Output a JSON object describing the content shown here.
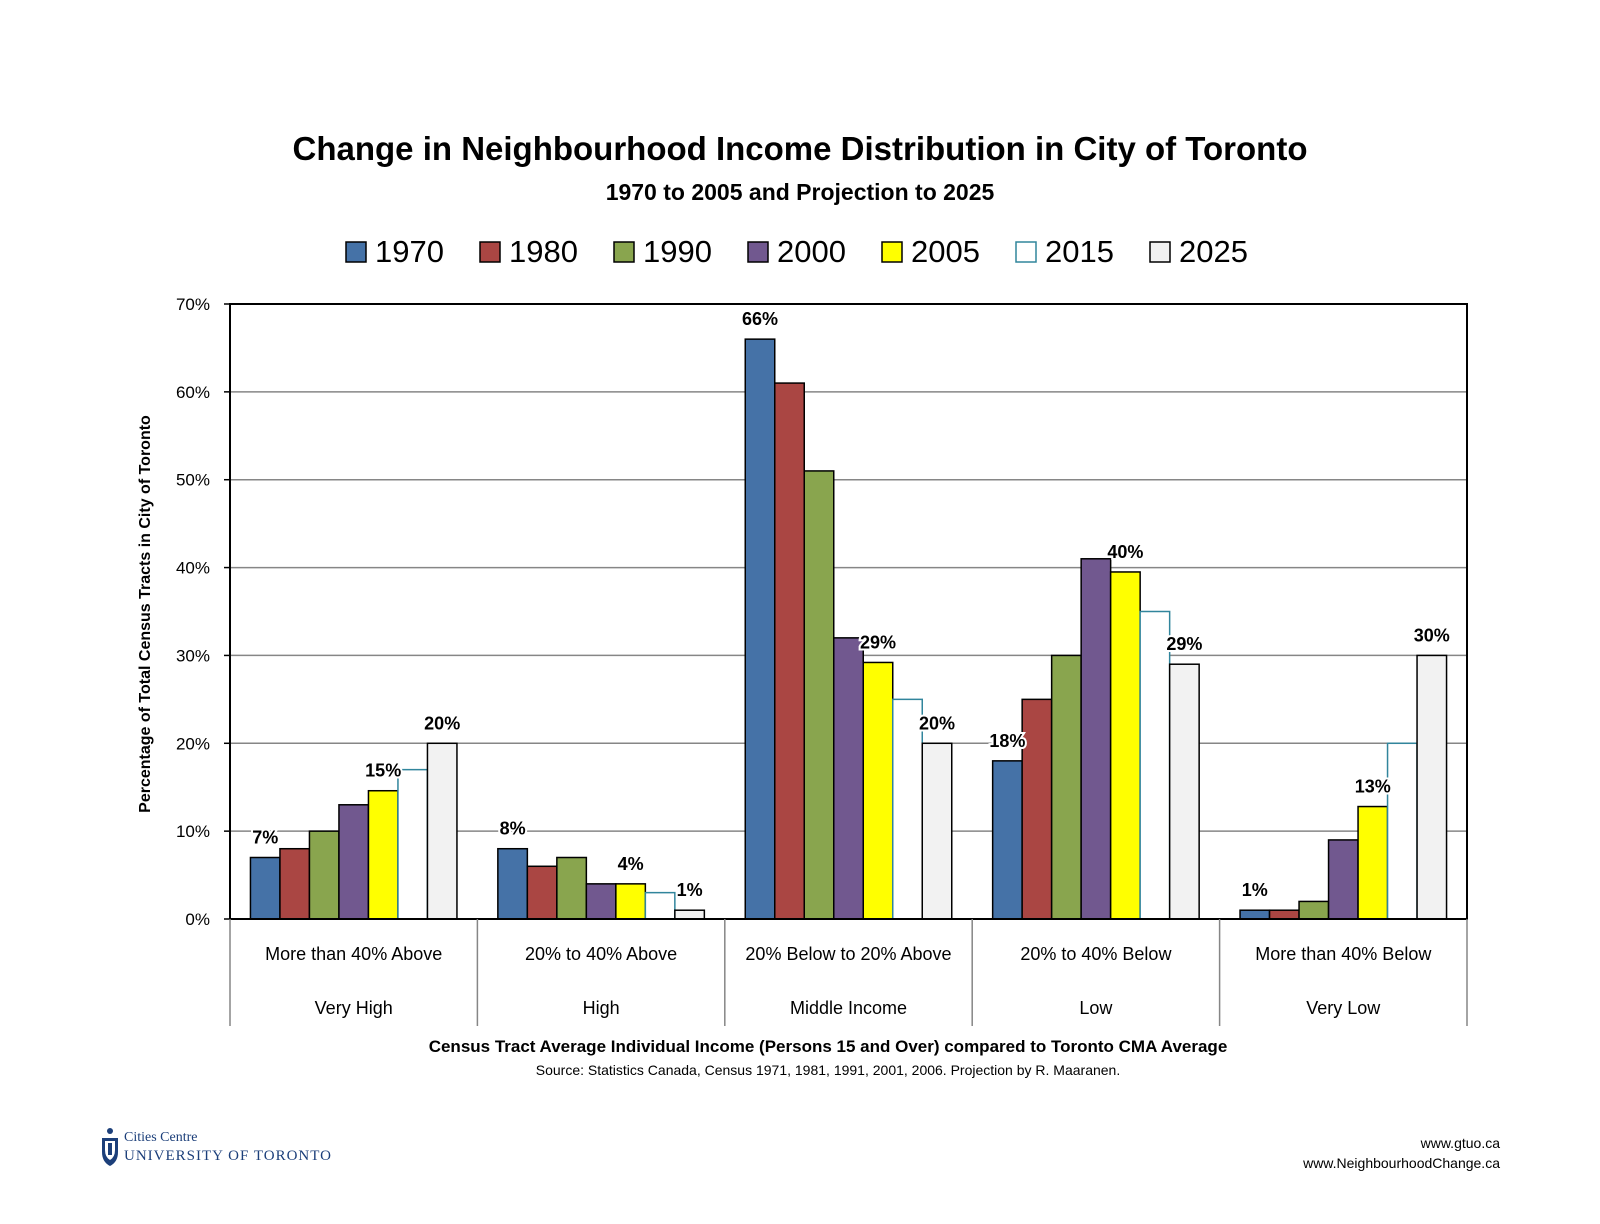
{
  "chart_data": {
    "type": "bar",
    "title": "Change in Neighbourhood Income Distribution in City of Toronto",
    "subtitle": "1970 to 2005 and Projection to 2025",
    "ylabel": "Percentage of Total Census Tracts in City of Toronto",
    "xlabel": "Census Tract Average Individual Income (Persons 15 and Over) compared to Toronto CMA Average",
    "source": "Source: Statistics Canada, Census 1971, 1981, 1991, 2001, 2006. Projection by R. Maaranen.",
    "ylim": [
      0,
      70
    ],
    "yticks": [
      0,
      10,
      20,
      30,
      40,
      50,
      60,
      70
    ],
    "ytick_labels": [
      "0%",
      "10%",
      "20%",
      "30%",
      "40%",
      "50%",
      "60%",
      "70%"
    ],
    "grid": true,
    "legend_position": "top",
    "categories": [
      "More than 40% Above",
      "20% to 40% Above",
      "20% Below to 20% Above",
      "20% to 40% Below",
      "More than 40% Below"
    ],
    "category_groups": [
      "Very High",
      "High",
      "Middle Income",
      "Low",
      "Very Low"
    ],
    "series": [
      {
        "name": "1970",
        "color": "#4572a7",
        "values": [
          7,
          8,
          66,
          18,
          1
        ]
      },
      {
        "name": "1980",
        "color": "#aa4643",
        "values": [
          8,
          6,
          61,
          25,
          1
        ]
      },
      {
        "name": "1990",
        "color": "#89a54e",
        "values": [
          10,
          7,
          51,
          30,
          2
        ]
      },
      {
        "name": "2000",
        "color": "#71588f",
        "values": [
          13,
          4,
          32,
          41,
          9
        ]
      },
      {
        "name": "2005",
        "color": "#ffff00",
        "values": [
          14.6,
          4,
          29.2,
          39.5,
          12.8
        ]
      },
      {
        "name": "2015",
        "color": "#ffffff",
        "edge": "#31859c",
        "values": [
          17,
          3,
          25,
          35,
          20
        ]
      },
      {
        "name": "2025",
        "color": "#f2f2f2",
        "values": [
          20,
          1,
          20,
          29,
          30
        ]
      }
    ],
    "data_labels": [
      {
        "category": 0,
        "series": 0,
        "text": "7%"
      },
      {
        "category": 0,
        "series": 4,
        "text": "15%"
      },
      {
        "category": 0,
        "series": 6,
        "text": "20%"
      },
      {
        "category": 1,
        "series": 0,
        "text": "8%"
      },
      {
        "category": 1,
        "series": 4,
        "text": "4%"
      },
      {
        "category": 1,
        "series": 6,
        "text": "1%"
      },
      {
        "category": 2,
        "series": 0,
        "text": "66%"
      },
      {
        "category": 2,
        "series": 4,
        "text": "29%"
      },
      {
        "category": 2,
        "series": 6,
        "text": "20%"
      },
      {
        "category": 3,
        "series": 0,
        "text": "18%"
      },
      {
        "category": 3,
        "series": 4,
        "text": "40%"
      },
      {
        "category": 3,
        "series": 6,
        "text": "29%"
      },
      {
        "category": 4,
        "series": 0,
        "text": "1%"
      },
      {
        "category": 4,
        "series": 4,
        "text": "13%"
      },
      {
        "category": 4,
        "series": 6,
        "text": "30%"
      }
    ]
  },
  "footer": {
    "org_line1": "Cities Centre",
    "org_line2": "UNIVERSITY OF TORONTO",
    "url1": "www.gtuo.ca",
    "url2": "www.NeighbourhoodChange.ca"
  }
}
